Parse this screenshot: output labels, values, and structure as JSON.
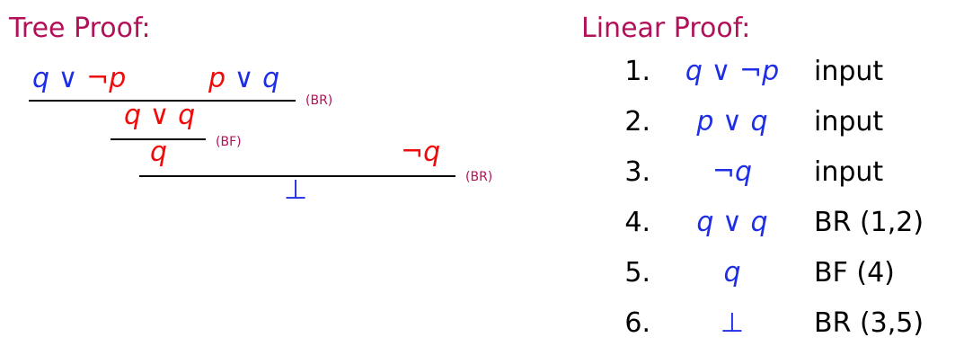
{
  "colors": {
    "heading": "#b3105a",
    "blue": "#1e2ee6",
    "red": "#f00a0a",
    "label": "#b3105a",
    "rule": "#000000"
  },
  "tree": {
    "title": "Tree Proof:",
    "premise_left": {
      "a": "q",
      "or": "∨",
      "neg": "¬",
      "b": "p"
    },
    "premise_right": {
      "a": "p",
      "or": "∨",
      "b": "q"
    },
    "rule1_label": "(BR)",
    "step2": {
      "a": "q",
      "or": "∨",
      "b": "q"
    },
    "rule2_label": "(BF)",
    "step3": {
      "a": "q"
    },
    "premise_neg": {
      "neg": "¬",
      "a": "q"
    },
    "rule3_label": "(BR)",
    "conclusion": "⊥"
  },
  "linear": {
    "title": "Linear Proof:",
    "rows": [
      {
        "num": "1.",
        "f": {
          "a": "q",
          "or": "∨",
          "neg": "¬",
          "b": "p"
        },
        "just": "input"
      },
      {
        "num": "2.",
        "f": {
          "a": "p",
          "or": "∨",
          "b": "q"
        },
        "just": "input"
      },
      {
        "num": "3.",
        "f": {
          "neg": "¬",
          "a": "q"
        },
        "just": "input"
      },
      {
        "num": "4.",
        "f": {
          "a": "q",
          "or": "∨",
          "b": "q"
        },
        "just": "BR (1,2)"
      },
      {
        "num": "5.",
        "f": {
          "a": "q"
        },
        "just": "BF (4)"
      },
      {
        "num": "6.",
        "f": {
          "sym": "⊥"
        },
        "just": "BR (3,5)"
      }
    ]
  }
}
